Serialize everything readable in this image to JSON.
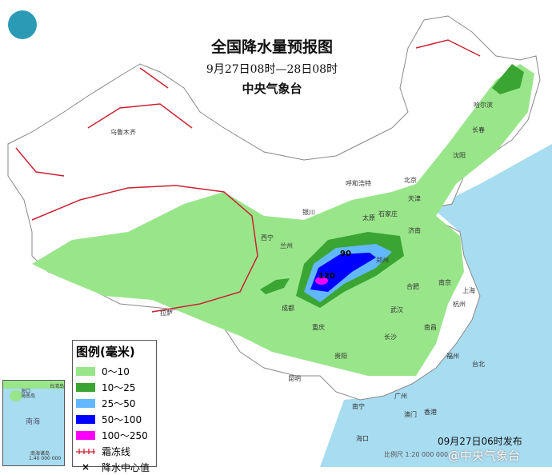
{
  "title": "全国降水量预报图",
  "period": "9月27日08时—28日08时",
  "agency": "中央气象台",
  "issued": "09月27日06时发布",
  "scale": "比例尺 1:20 000 000",
  "watermark": "@中央气象台",
  "inset": {
    "label": "南海诸岛",
    "sea": "南海",
    "scale": "1:40 000 000",
    "island": "海南岛",
    "city": "海口",
    "taiwan": "台湾岛"
  },
  "legend": {
    "title": "图例(毫米)",
    "items": [
      {
        "label": "0～10",
        "color": "#99e68a"
      },
      {
        "label": "10～25",
        "color": "#3aa532"
      },
      {
        "label": "25～50",
        "color": "#62b8ff"
      },
      {
        "label": "50～100",
        "color": "#0000fe"
      },
      {
        "label": "100～250",
        "color": "#fa00fa"
      }
    ],
    "frost_label": "霜冻线",
    "center_label": "降水中心值",
    "center_icon": "cross-icon"
  },
  "colors": {
    "sea": "#a8dcf0",
    "land": "#ffffff",
    "frost": "#cc2233"
  },
  "centers": [
    "90",
    "120"
  ],
  "cities": [
    "乌鲁木齐",
    "哈尔滨",
    "长春",
    "沈阳",
    "北京",
    "天津",
    "呼和浩特",
    "银川",
    "太原",
    "石家庄",
    "济南",
    "西宁",
    "兰州",
    "郑州",
    "合肥",
    "南京",
    "上海",
    "杭州",
    "武汉",
    "成都",
    "重庆",
    "长沙",
    "南昌",
    "拉萨",
    "贵阳",
    "昆明",
    "南宁",
    "广州",
    "福州",
    "台北",
    "香港",
    "澳门",
    "海口"
  ]
}
